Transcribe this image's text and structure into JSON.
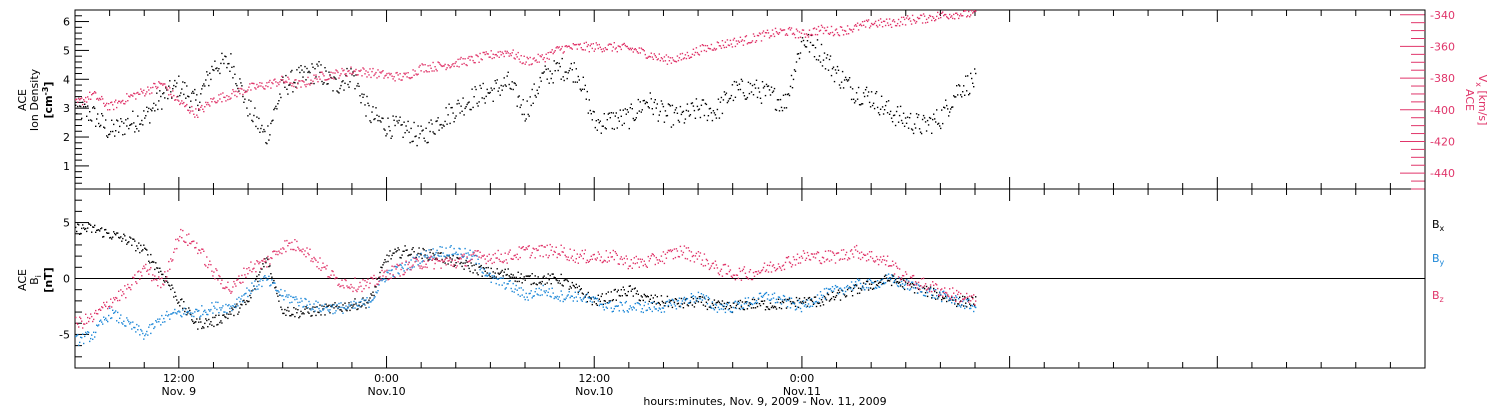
{
  "chart_data": [
    {
      "type": "scatter",
      "panel": "top",
      "ylabel_left": [
        "ACE",
        "Ion Density",
        "[cm",
        "-3",
        "]"
      ],
      "ylabel_right": [
        "ACE",
        "V",
        "x",
        " [km/s]"
      ],
      "yticks_left": [
        "1",
        "2",
        "3",
        "4",
        "5",
        "6"
      ],
      "yticks_left_values": [
        1,
        2,
        3,
        4,
        5,
        6
      ],
      "ylim_left": [
        0.2,
        6.4
      ],
      "yticks_right": [
        "-440",
        "-420",
        "-400",
        "-380",
        "-360",
        "-340"
      ],
      "yticks_right_values": [
        -440,
        -420,
        -400,
        -380,
        -360,
        -340
      ],
      "ylim_right": [
        -450,
        -337
      ],
      "xlim_hours": [
        -6,
        72
      ],
      "series": [
        {
          "name": "Ion Density",
          "axis": "left",
          "color": "#000000",
          "hours": [
            -6,
            -5,
            -4,
            -3,
            -2,
            -1,
            0,
            1,
            2,
            3,
            4,
            5,
            6,
            7,
            8,
            9,
            10,
            11,
            12,
            13,
            14,
            15,
            16,
            17,
            18,
            19,
            20,
            21,
            22,
            23,
            24,
            25,
            26,
            27,
            28,
            29,
            30,
            31,
            32,
            33,
            34,
            35,
            36,
            37,
            38,
            39,
            40,
            41,
            42,
            43,
            44,
            45,
            46
          ],
          "values": [
            3.0,
            2.8,
            2.2,
            2.5,
            2.7,
            3.4,
            3.8,
            3.2,
            4.5,
            4.6,
            3.0,
            2.0,
            3.8,
            4.1,
            4.3,
            3.8,
            4.2,
            2.8,
            2.4,
            2.3,
            2.0,
            2.6,
            3.0,
            3.4,
            3.6,
            3.9,
            2.9,
            4.1,
            4.4,
            4.3,
            2.5,
            2.6,
            2.7,
            3.3,
            2.8,
            2.7,
            3.0,
            2.9,
            3.6,
            3.7,
            3.5,
            3.2,
            5.4,
            5.0,
            4.2,
            3.6,
            3.4,
            2.9,
            2.6,
            2.4,
            2.7,
            3.7,
            4.0
          ],
          "spread": 0.4
        },
        {
          "name": "Vx",
          "axis": "right",
          "color": "#e0356a",
          "hours": [
            -6,
            -5,
            -4,
            -3,
            -2,
            -1,
            0,
            1,
            2,
            3,
            4,
            5,
            6,
            7,
            8,
            9,
            10,
            11,
            12,
            13,
            14,
            15,
            16,
            17,
            18,
            19,
            20,
            21,
            22,
            23,
            24,
            25,
            26,
            27,
            28,
            29,
            30,
            31,
            32,
            33,
            34,
            35,
            36,
            37,
            38,
            39,
            40,
            41,
            42,
            43,
            44,
            45,
            46
          ],
          "values": [
            -396,
            -390,
            -398,
            -392,
            -388,
            -383,
            -395,
            -402,
            -393,
            -390,
            -386,
            -384,
            -381,
            -384,
            -379,
            -377,
            -375,
            -376,
            -378,
            -379,
            -373,
            -372,
            -370,
            -368,
            -365,
            -363,
            -369,
            -367,
            -361,
            -360,
            -360,
            -360,
            -361,
            -364,
            -368,
            -367,
            -362,
            -359,
            -357,
            -355,
            -352,
            -350,
            -352,
            -349,
            -350,
            -348,
            -345,
            -345,
            -343,
            -342,
            -340,
            -339,
            -339
          ],
          "spread": 3
        }
      ]
    },
    {
      "type": "scatter",
      "panel": "bottom",
      "ylabel_left": [
        "ACE",
        "B",
        "i",
        "[nT]"
      ],
      "yticks_left": [
        "-5",
        "0",
        "5"
      ],
      "yticks_left_values": [
        -5,
        0,
        5
      ],
      "ylim_left": [
        -8,
        8
      ],
      "zero_line": true,
      "legend": [
        "Bx",
        "By",
        "Bz"
      ],
      "legend_placement": "right",
      "xlim_hours": [
        -6,
        72
      ],
      "xticks": [
        {
          "hours": 0,
          "line1": "12:00",
          "line2": "Nov. 9"
        },
        {
          "hours": 12,
          "line1": "0:00",
          "line2": "Nov.10"
        },
        {
          "hours": 24,
          "line1": "12:00",
          "line2": "Nov.10"
        },
        {
          "hours": 36,
          "line1": "0:00",
          "line2": "Nov.11"
        }
      ],
      "series": [
        {
          "name": "B",
          "sub": "x",
          "color": "#000000",
          "hours": [
            -6,
            -5,
            -4,
            -3,
            -2,
            -1,
            0,
            1,
            2,
            3,
            4,
            5,
            6,
            7,
            8,
            9,
            10,
            11,
            12,
            13,
            14,
            15,
            16,
            17,
            18,
            19,
            20,
            21,
            22,
            23,
            24,
            25,
            26,
            27,
            28,
            29,
            30,
            31,
            32,
            33,
            34,
            35,
            36,
            37,
            38,
            39,
            40,
            41,
            42,
            43,
            44,
            45,
            46
          ],
          "values": [
            4.5,
            4.5,
            4.0,
            3.5,
            2.5,
            0.5,
            -2.0,
            -4.0,
            -3.8,
            -3.0,
            -2.0,
            2.0,
            -2.8,
            -3.0,
            -2.8,
            -2.6,
            -2.3,
            -2.0,
            2.0,
            2.5,
            2.3,
            2.0,
            1.5,
            1.0,
            0.5,
            0.5,
            0.0,
            0.0,
            0.0,
            -1.0,
            -2.0,
            -1.5,
            -1.0,
            -1.8,
            -2.0,
            -2.2,
            -2.0,
            -2.4,
            -2.5,
            -2.2,
            -2.3,
            -2.2,
            -2.0,
            -2.0,
            -1.5,
            -1.0,
            -0.5,
            0.0,
            -0.5,
            -1.0,
            -1.5,
            -2.0,
            -2.0
          ],
          "spread": 0.5
        },
        {
          "name": "B",
          "sub": "y",
          "color": "#1e88d8",
          "hours": [
            -6,
            -5,
            -4,
            -3,
            -2,
            -1,
            0,
            1,
            2,
            3,
            4,
            5,
            6,
            7,
            8,
            9,
            10,
            11,
            12,
            13,
            14,
            15,
            16,
            17,
            18,
            19,
            20,
            21,
            22,
            23,
            24,
            25,
            26,
            27,
            28,
            29,
            30,
            31,
            32,
            33,
            34,
            35,
            36,
            37,
            38,
            39,
            40,
            41,
            42,
            43,
            44,
            45,
            46
          ],
          "values": [
            -5.5,
            -5.0,
            -3.0,
            -4.0,
            -5.0,
            -3.5,
            -3.0,
            -3.0,
            -2.5,
            -2.5,
            -1.0,
            0.0,
            -1.5,
            -2.0,
            -2.5,
            -2.6,
            -2.5,
            -2.0,
            0.5,
            1.0,
            2.0,
            2.5,
            2.5,
            2.0,
            0.0,
            -0.5,
            -1.5,
            -1.0,
            -1.5,
            -1.5,
            -2.0,
            -2.5,
            -2.5,
            -2.5,
            -2.5,
            -2.0,
            -1.5,
            -2.5,
            -2.5,
            -2.0,
            -1.5,
            -2.0,
            -2.5,
            -1.5,
            -1.0,
            -0.5,
            -0.5,
            0.0,
            -0.5,
            -1.0,
            -1.5,
            -2.0,
            -2.5
          ],
          "spread": 0.5
        },
        {
          "name": "B",
          "sub": "z",
          "color": "#e0356a",
          "hours": [
            -6,
            -5,
            -4,
            -3,
            -2,
            -1,
            0,
            1,
            2,
            3,
            4,
            5,
            6,
            7,
            8,
            9,
            10,
            11,
            12,
            13,
            14,
            15,
            16,
            17,
            18,
            19,
            20,
            21,
            22,
            23,
            24,
            25,
            26,
            27,
            28,
            29,
            30,
            31,
            32,
            33,
            34,
            35,
            36,
            37,
            38,
            39,
            40,
            41,
            42,
            43,
            44,
            45,
            46
          ],
          "values": [
            -4.0,
            -3.5,
            -2.0,
            -1.0,
            1.0,
            -0.5,
            4.0,
            3.0,
            0.5,
            -1.0,
            1.0,
            1.5,
            3.0,
            3.0,
            1.5,
            0.0,
            -0.5,
            -0.5,
            0.5,
            1.0,
            1.5,
            1.5,
            1.5,
            2.0,
            2.0,
            2.0,
            2.5,
            2.5,
            2.5,
            2.0,
            2.0,
            2.0,
            1.5,
            1.5,
            2.0,
            2.5,
            2.0,
            1.0,
            0.5,
            0.5,
            1.0,
            1.5,
            2.0,
            2.0,
            2.0,
            2.5,
            2.0,
            1.5,
            0.0,
            -0.5,
            -1.0,
            -1.5,
            -2.0
          ],
          "spread": 0.6
        }
      ]
    }
  ],
  "xaxis_title": "hours:minutes, Nov. 9, 2009 - Nov. 11, 2009"
}
